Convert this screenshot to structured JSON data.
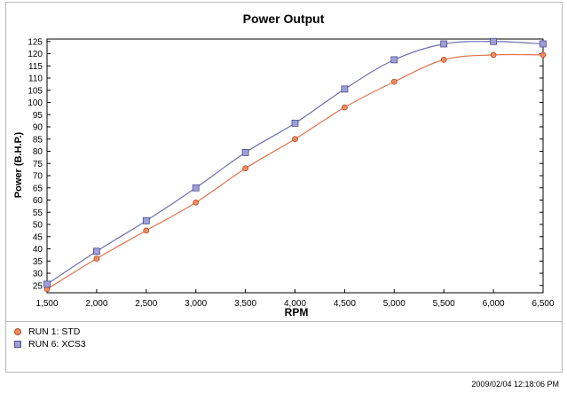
{
  "chart_data": {
    "type": "line",
    "title": "Power Output",
    "xlabel": "RPM",
    "ylabel": "Power (B.H.P.)",
    "x": [
      1500,
      2000,
      2500,
      3000,
      3500,
      4000,
      4500,
      5000,
      5500,
      6000,
      6500
    ],
    "x_tick_labels": [
      "1,500",
      "2,000",
      "2,500",
      "3,000",
      "3,500",
      "4,000",
      "4,500",
      "5,000",
      "5,500",
      "6,000",
      "6,500"
    ],
    "y_tick_labels": [
      "25",
      "30",
      "35",
      "40",
      "45",
      "50",
      "55",
      "60",
      "65",
      "70",
      "75",
      "80",
      "85",
      "90",
      "95",
      "100",
      "105",
      "110",
      "115",
      "120",
      "125"
    ],
    "xlim": [
      1500,
      6500
    ],
    "ylim": [
      22,
      126
    ],
    "grid": false,
    "legend_position": "bottom-left",
    "series": [
      {
        "name": "RUN 1: STD",
        "marker": "circle",
        "color": "#e0734e",
        "values": [
          23.5,
          36,
          47.5,
          59,
          73,
          85,
          98,
          108.5,
          117.5,
          119.5,
          119.5
        ]
      },
      {
        "name": "RUN 6: XCS3",
        "marker": "square",
        "color": "#6f6fae",
        "values": [
          25.5,
          39,
          51.5,
          65,
          79.5,
          91.5,
          105.5,
          117.5,
          124,
          125,
          124
        ]
      }
    ]
  },
  "timestamp": "2009/02/04 12:18:06 PM"
}
